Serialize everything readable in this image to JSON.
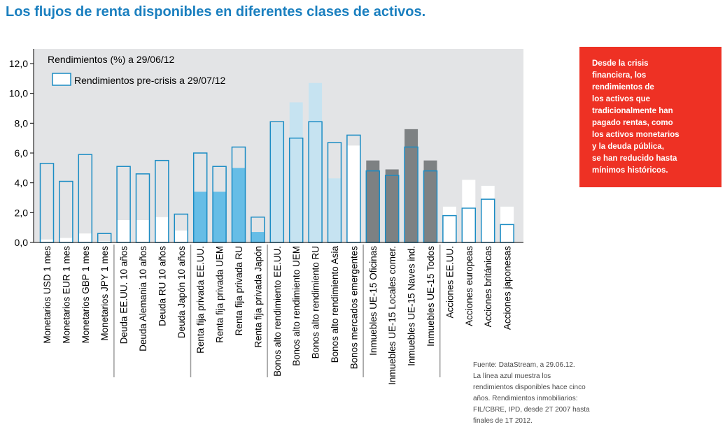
{
  "title": "Los flujos de renta disponibles en diferentes clases de activos.",
  "callout": {
    "lines": [
      "Desde la crisis",
      "financiera, los",
      "rendimientos de",
      "los activos que",
      "tradicionalmente han",
      "pagado rentas, como",
      "los activos monetarios",
      "y la deuda pública,",
      "se han reducido hasta",
      "mínimos históricos."
    ]
  },
  "source": {
    "lines": [
      "Fuente: DataStream, a 29.06.12.",
      "La línea azul muestra los",
      "rendimientos disponibles hace cinco",
      "años. Rendimientos inmobiliarios:",
      "FIL/CBRE, IPD, desde 2T 2007 hasta",
      "finales de 1T 2012."
    ]
  },
  "colors": {
    "plot_bg": "#e3e4e6",
    "outline_blue": "#1b8cc4",
    "fill_light_blue": "#c6e3f1",
    "fill_mid_blue": "#66bde6",
    "fill_dark_grey": "#7d8183",
    "fill_white": "#ffffff",
    "callout_red": "#ee3124",
    "title_blue": "#1a7fbf"
  },
  "chart_data": {
    "type": "bar",
    "title": "",
    "legend": [
      "Rendimientos (%) a 29/06/12",
      "Rendimientos pre-crisis a 29/07/12"
    ],
    "legend_position": "top-left",
    "grid": false,
    "ylim": [
      0,
      12
    ],
    "yticks": [
      "0,0",
      "2,0",
      "4,0",
      "6,0",
      "8,0",
      "10,0",
      "12,0"
    ],
    "categories": [
      "Monetarios USD 1 mes",
      "Monetarios EUR 1 mes",
      "Monetarios GBP 1 mes",
      "Monetarios JPY 1 mes",
      "Deuda EE.UU. 10 años",
      "Deuda Alemania 10 años",
      "Deuda RU 10 años",
      "Deuda Japón 10 años",
      "Renta fija privada EE.UU.",
      "Renta fija privada UEM",
      "Renta fija privada RU",
      "Renta fija privada Japón",
      "Bonos alto rendimiento EE.UU.",
      "Bonos alto rendimiento UEM",
      "Bonos alto rendimiento RU",
      "Bonos alto rendimiento Asia",
      "Bonos mercados emergentes",
      "Inmuebles UE-15 Oficinas",
      "Inmuebles UE-15 Locales comer.",
      "Inmuebles UE-15 Naves ind.",
      "Inmuebles UE-15 Todos",
      "Acciones EE.UU.",
      "Acciones europeas",
      "Acciones británicas",
      "Acciones japonesas"
    ],
    "series": [
      {
        "name": "Rendimientos (%) a 29/06/12",
        "values": [
          0.2,
          0.3,
          0.6,
          0.1,
          1.5,
          1.5,
          1.7,
          0.8,
          3.4,
          3.4,
          5.0,
          0.7,
          8.0,
          9.4,
          10.7,
          4.3,
          6.5,
          5.5,
          4.9,
          7.6,
          5.5,
          2.4,
          4.2,
          3.8,
          2.4
        ]
      },
      {
        "name": "Rendimientos pre-crisis a 29/07/12",
        "values": [
          5.3,
          4.1,
          5.9,
          0.6,
          5.1,
          4.6,
          5.5,
          1.9,
          6.0,
          5.1,
          6.4,
          1.7,
          8.1,
          7.0,
          8.1,
          6.7,
          7.2,
          4.8,
          4.5,
          6.4,
          4.8,
          1.8,
          2.3,
          2.9,
          1.2
        ]
      }
    ],
    "fill_groups": [
      "white",
      "white",
      "white",
      "white",
      "white",
      "white",
      "white",
      "white",
      "mid",
      "mid",
      "mid",
      "mid",
      "light",
      "light",
      "light",
      "light",
      "white",
      "grey",
      "grey",
      "grey",
      "grey",
      "white",
      "white",
      "white",
      "white"
    ],
    "group_separators_after": [
      3,
      7,
      11,
      16,
      20
    ]
  }
}
